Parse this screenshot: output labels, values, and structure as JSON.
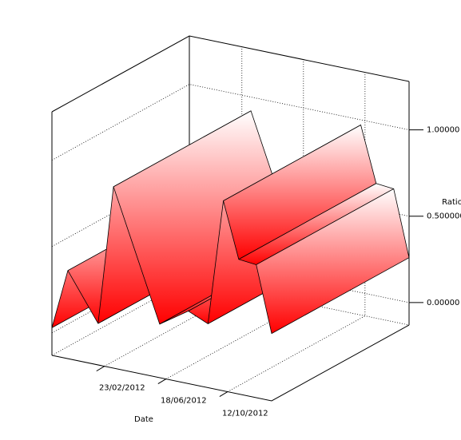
{
  "chart_data": {
    "type": "area3d",
    "xlabel": "Date",
    "ylabel": "Ratio",
    "x": [
      "2011-11-16",
      "2011-12-16",
      "2012-02-11",
      "2012-03-11",
      "2012-06-06",
      "2012-07-30",
      "2012-09-05",
      "2012-10-04",
      "2012-11-02",
      "2012-12-05",
      "2013-01-03"
    ],
    "values": [
      0.03,
      0.38,
      0.11,
      0.92,
      0.18,
      0.29,
      0.24,
      0.97,
      0.65,
      0.64,
      0.26
    ],
    "color": "#ff0000",
    "xlim": [
      "2011-11-16",
      "2013-01-03"
    ],
    "xticks": [
      {
        "value": "2012-02-23",
        "label": "23/02/2012"
      },
      {
        "value": "2012-06-18",
        "label": "18/06/2012"
      },
      {
        "value": "2012-10-12",
        "label": "12/10/2012"
      }
    ],
    "ylim": [
      -0.13,
      1.28
    ],
    "yticks": [
      {
        "value": 0,
        "label": "0.00000"
      },
      {
        "value": 0.5,
        "label": "0.500000"
      },
      {
        "value": 1,
        "label": "1.00000"
      }
    ],
    "grid": true
  }
}
